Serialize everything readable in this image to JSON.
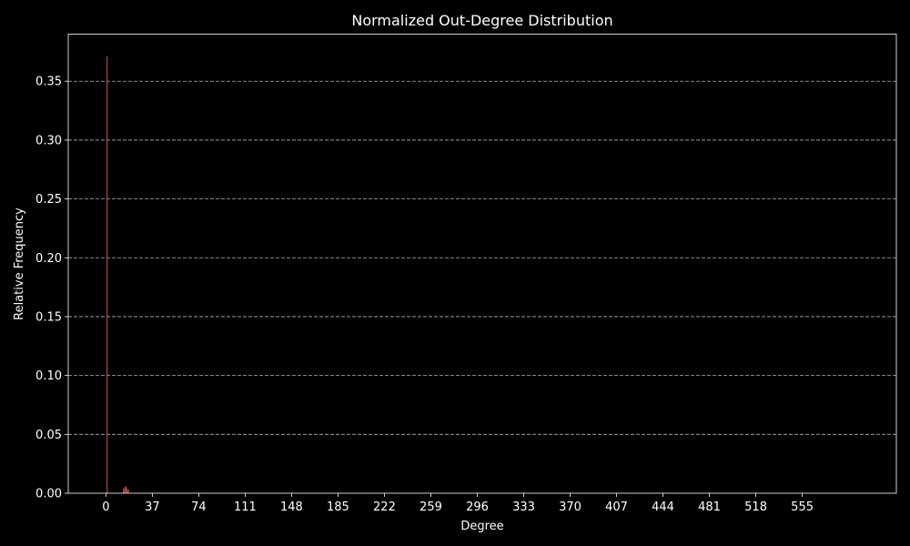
{
  "chart_data": {
    "type": "bar",
    "title": "Normalized Out-Degree Distribution",
    "xlabel": "Degree",
    "ylabel": "Relative Frequency",
    "xlim": [
      -30,
      630
    ],
    "ylim": [
      0,
      0.39
    ],
    "x_ticks": [
      0,
      37,
      74,
      111,
      148,
      185,
      222,
      259,
      296,
      333,
      370,
      407,
      444,
      481,
      518,
      555
    ],
    "y_ticks": [
      "0.00",
      "0.05",
      "0.10",
      "0.15",
      "0.20",
      "0.25",
      "0.30",
      "0.35"
    ],
    "grid": "y-dashed",
    "bar_color": "#c0504d",
    "background": "#000000",
    "x": [
      1,
      14,
      15,
      16,
      17,
      18
    ],
    "values": [
      0.371,
      0.004,
      0.005,
      0.006,
      0.004,
      0.003
    ]
  }
}
